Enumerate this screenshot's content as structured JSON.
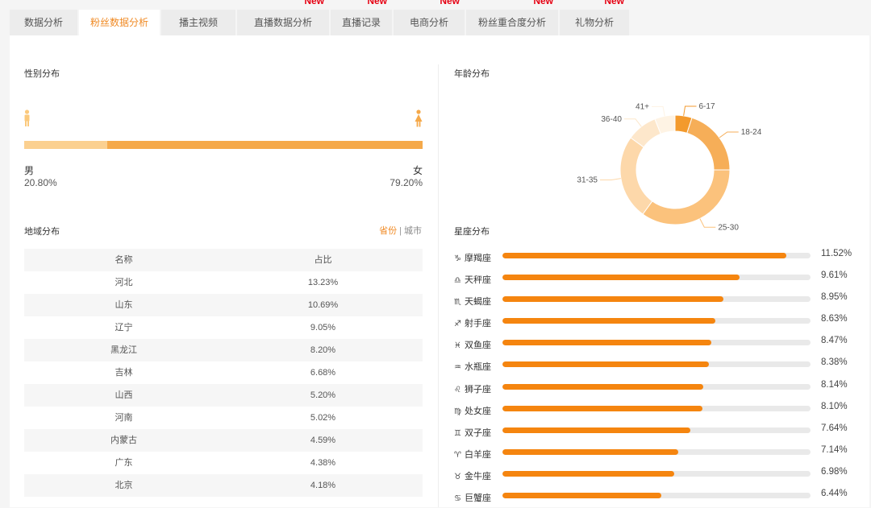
{
  "tabs": [
    {
      "label": "数据分析",
      "active": false,
      "new": false
    },
    {
      "label": "粉丝数据分析",
      "active": true,
      "new": false
    },
    {
      "label": "播主视频",
      "active": false,
      "new": false
    },
    {
      "label": "直播数据分析",
      "active": false,
      "new": true
    },
    {
      "label": "直播记录",
      "active": false,
      "new": true
    },
    {
      "label": "电商分析",
      "active": false,
      "new": true
    },
    {
      "label": "粉丝重合度分析",
      "active": false,
      "new": true
    },
    {
      "label": "礼物分析",
      "active": false,
      "new": true
    }
  ],
  "new_badge": "New",
  "gender": {
    "title": "性别分布",
    "male_label": "男",
    "male_value": "20.80%",
    "female_label": "女",
    "female_value": "79.20%",
    "female_fraction": 0.792,
    "colors": {
      "male": "#fbd090",
      "female": "#f5a94a"
    }
  },
  "region": {
    "title": "地域分布",
    "toggle": {
      "active": "省份",
      "separator": "|",
      "inactive": "城市"
    },
    "headers": [
      "名称",
      "占比"
    ],
    "rows": [
      [
        "河北",
        "13.23%"
      ],
      [
        "山东",
        "10.69%"
      ],
      [
        "辽宁",
        "9.05%"
      ],
      [
        "黑龙江",
        "8.20%"
      ],
      [
        "吉林",
        "6.68%"
      ],
      [
        "山西",
        "5.20%"
      ],
      [
        "河南",
        "5.02%"
      ],
      [
        "内蒙古",
        "4.59%"
      ],
      [
        "广东",
        "4.38%"
      ],
      [
        "北京",
        "4.18%"
      ]
    ]
  },
  "age": {
    "title": "年龄分布",
    "chart_data": {
      "type": "pie",
      "title": "年龄分布",
      "categories": [
        "6-17",
        "18-24",
        "25-30",
        "31-35",
        "36-40",
        "41+"
      ],
      "values": [
        5,
        20,
        35,
        25,
        9,
        6
      ],
      "colors": [
        "#f39a2d",
        "#f6ae58",
        "#fbc27c",
        "#fdd8aa",
        "#fde7cb",
        "#fef3e4"
      ]
    }
  },
  "zodiac": {
    "title": "星座分布",
    "max": 12.5,
    "items": [
      {
        "icon": "♑",
        "name": "摩羯座",
        "value": 11.52,
        "label": "11.52%"
      },
      {
        "icon": "♎",
        "name": "天秤座",
        "value": 9.61,
        "label": "9.61%"
      },
      {
        "icon": "♏",
        "name": "天蝎座",
        "value": 8.95,
        "label": "8.95%"
      },
      {
        "icon": "♐",
        "name": "射手座",
        "value": 8.63,
        "label": "8.63%"
      },
      {
        "icon": "♓",
        "name": "双鱼座",
        "value": 8.47,
        "label": "8.47%"
      },
      {
        "icon": "♒",
        "name": "水瓶座",
        "value": 8.38,
        "label": "8.38%"
      },
      {
        "icon": "♌",
        "name": "狮子座",
        "value": 8.14,
        "label": "8.14%"
      },
      {
        "icon": "♍",
        "name": "处女座",
        "value": 8.1,
        "label": "8.10%"
      },
      {
        "icon": "♊",
        "name": "双子座",
        "value": 7.64,
        "label": "7.64%"
      },
      {
        "icon": "♈",
        "name": "白羊座",
        "value": 7.14,
        "label": "7.14%"
      },
      {
        "icon": "♉",
        "name": "金牛座",
        "value": 6.98,
        "label": "6.98%"
      },
      {
        "icon": "♋",
        "name": "巨蟹座",
        "value": 6.44,
        "label": "6.44%"
      }
    ],
    "bar_color": "#f5850f"
  }
}
